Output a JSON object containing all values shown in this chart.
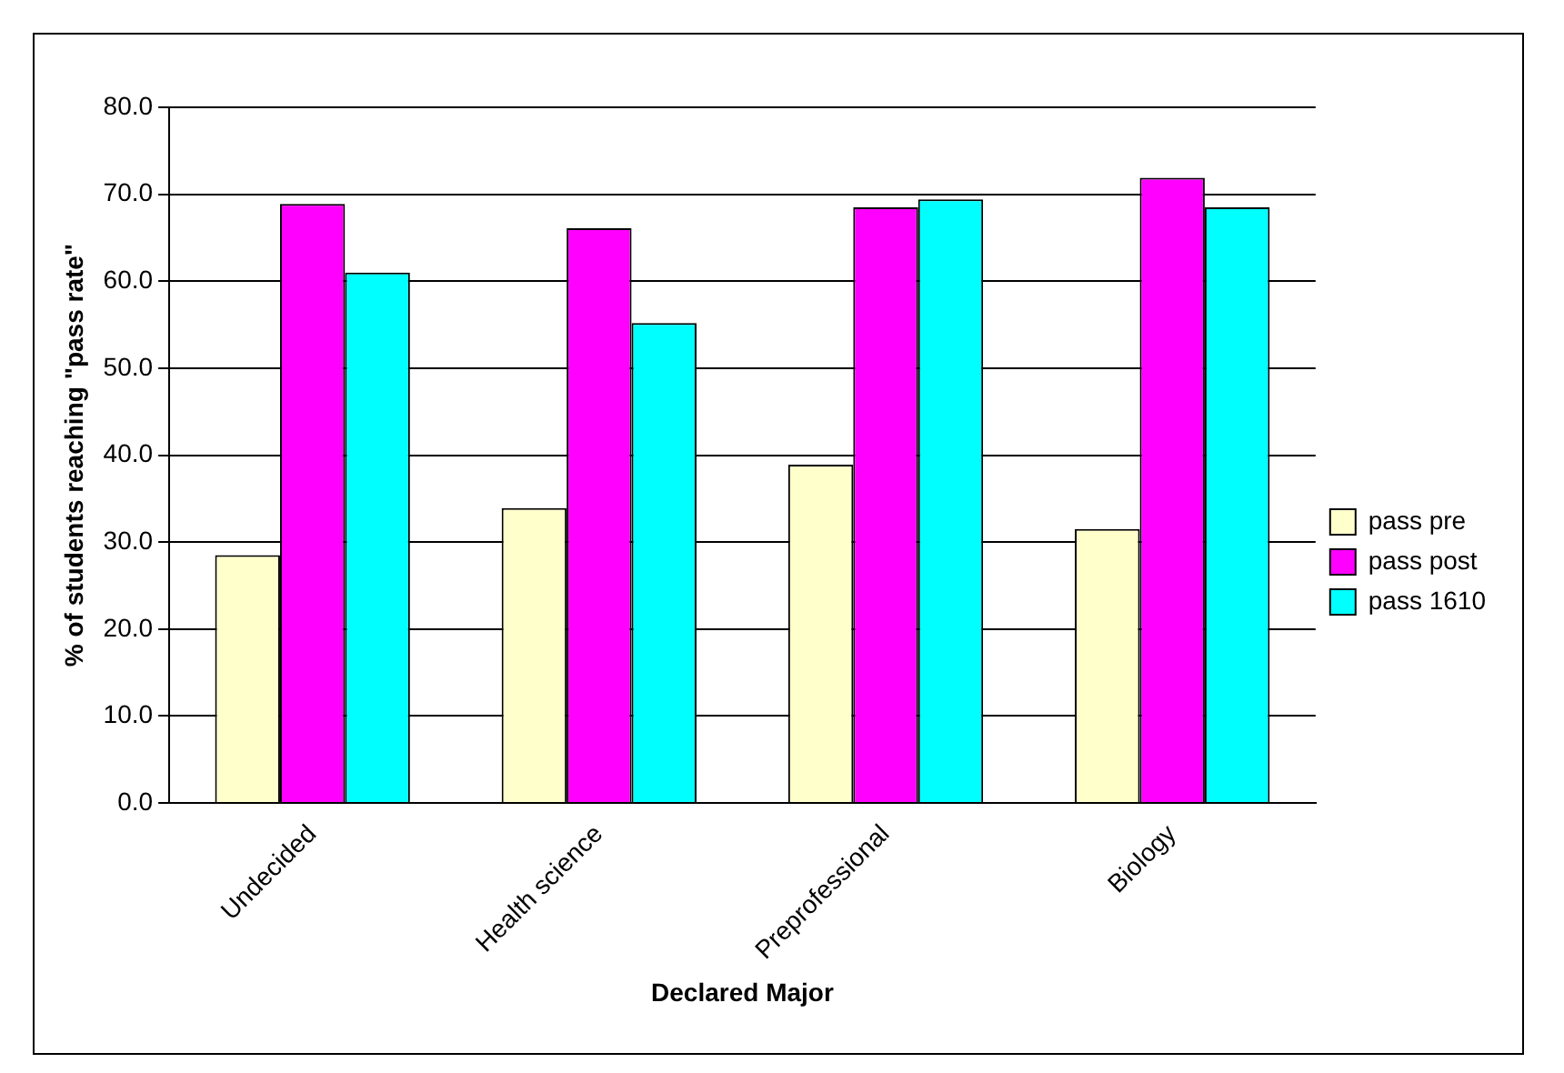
{
  "chart_data": {
    "type": "bar",
    "xlabel": "Declared Major",
    "ylabel": "% of students reaching \"pass rate\"",
    "categories": [
      "Undecided",
      "Health science",
      "Preprofessional",
      "Biology"
    ],
    "series": [
      {
        "name": "pass pre",
        "color": "#ffffcc",
        "values": [
          28.5,
          33.9,
          38.9,
          31.5
        ]
      },
      {
        "name": "pass post",
        "color": "#ff00ff",
        "values": [
          68.9,
          66.1,
          68.5,
          71.9
        ]
      },
      {
        "name": "pass 1610",
        "color": "#00ffff",
        "values": [
          61.0,
          55.2,
          69.4,
          68.5
        ]
      }
    ],
    "ylim": [
      0,
      80
    ],
    "yticks": [
      {
        "value": 0,
        "label": "0.0"
      },
      {
        "value": 10,
        "label": "10.0"
      },
      {
        "value": 20,
        "label": "20.0"
      },
      {
        "value": 30,
        "label": "30.0"
      },
      {
        "value": 40,
        "label": "40.0"
      },
      {
        "value": 50,
        "label": "50.0"
      },
      {
        "value": 60,
        "label": "60.0"
      },
      {
        "value": 70,
        "label": "70.0"
      },
      {
        "value": 80,
        "label": "80.0"
      }
    ],
    "grid": "y",
    "legend": "right"
  }
}
